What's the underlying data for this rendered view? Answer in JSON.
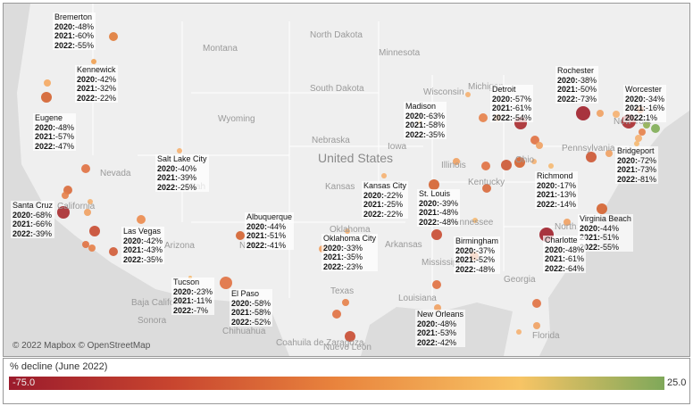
{
  "map": {
    "copyright": "© 2022 Mapbox © OpenStreetMap",
    "places": [
      "Montana",
      "North Dakota",
      "South Dakota",
      "Minnesota",
      "Wisconsin",
      "Wyoming",
      "Nebraska",
      "United States",
      "Iowa",
      "Illinois",
      "Ohio",
      "Pennsylvania",
      "New York",
      "Kansas",
      "Nevada",
      "California",
      "Utah",
      "Kentucky",
      "Arizona",
      "New",
      "Oklahoma",
      "Arkansas",
      "Tennessee",
      "North",
      "Mississippi",
      "Texas",
      "Louisiana",
      "Georgia",
      "Florida",
      "Baja California",
      "Sonora",
      "Chihuahua",
      "Coahuila de Zaragoza",
      "Nuevo León",
      "Michigan"
    ],
    "cities": [
      {
        "name": "Bremerton",
        "rows": [
          {
            "year": "2020:",
            "value": "-48%"
          },
          {
            "year": "2021:",
            "value": "-60%"
          },
          {
            "year": "2022:",
            "value": "-55%"
          }
        ]
      },
      {
        "name": "Kennewick",
        "rows": [
          {
            "year": "2020:",
            "value": "-42%"
          },
          {
            "year": "2021:",
            "value": "-32%"
          },
          {
            "year": "2022:",
            "value": "-22%"
          }
        ]
      },
      {
        "name": "Eugene",
        "rows": [
          {
            "year": "2020:",
            "value": "-48%"
          },
          {
            "year": "2021:",
            "value": "-57%"
          },
          {
            "year": "2022:",
            "value": "-47%"
          }
        ]
      },
      {
        "name": "Salt Lake City",
        "rows": [
          {
            "year": "2020:",
            "value": "-40%"
          },
          {
            "year": "2021:",
            "value": "-39%"
          },
          {
            "year": "2022:",
            "value": "-25%"
          }
        ]
      },
      {
        "name": "Santa Cruz",
        "rows": [
          {
            "year": "2020:",
            "value": "-68%"
          },
          {
            "year": "2021:",
            "value": "-66%"
          },
          {
            "year": "2022:",
            "value": "-39%"
          }
        ]
      },
      {
        "name": "Las Vegas",
        "rows": [
          {
            "year": "2020:",
            "value": "-42%"
          },
          {
            "year": "2021:",
            "value": "-43%"
          },
          {
            "year": "2022:",
            "value": "-35%"
          }
        ]
      },
      {
        "name": "Albuquerque",
        "rows": [
          {
            "year": "2020:",
            "value": "-44%"
          },
          {
            "year": "2021:",
            "value": "-51%"
          },
          {
            "year": "2022:",
            "value": "-41%"
          }
        ]
      },
      {
        "name": "Tucson",
        "rows": [
          {
            "year": "2020:",
            "value": "-23%"
          },
          {
            "year": "2021:",
            "value": "-11%"
          },
          {
            "year": "2022:",
            "value": "-7%"
          }
        ]
      },
      {
        "name": "El Paso",
        "rows": [
          {
            "year": "2020:",
            "value": "-58%"
          },
          {
            "year": "2021:",
            "value": "-58%"
          },
          {
            "year": "2022:",
            "value": "-52%"
          }
        ]
      },
      {
        "name": "Oklahoma City",
        "rows": [
          {
            "year": "2020:",
            "value": "-33%"
          },
          {
            "year": "2021:",
            "value": "-35%"
          },
          {
            "year": "2022:",
            "value": "-23%"
          }
        ]
      },
      {
        "name": "Kansas City",
        "rows": [
          {
            "year": "2020:",
            "value": "-22%"
          },
          {
            "year": "2021:",
            "value": "-25%"
          },
          {
            "year": "2022:",
            "value": "-22%"
          }
        ]
      },
      {
        "name": "St. Louis",
        "rows": [
          {
            "year": "2020:",
            "value": "-39%"
          },
          {
            "year": "2021:",
            "value": "-48%"
          },
          {
            "year": "2022:",
            "value": "-48%"
          }
        ]
      },
      {
        "name": "Madison",
        "rows": [
          {
            "year": "2020:",
            "value": "-63%"
          },
          {
            "year": "2021:",
            "value": "-58%"
          },
          {
            "year": "2022:",
            "value": "-35%"
          }
        ]
      },
      {
        "name": "Detroit",
        "rows": [
          {
            "year": "2020:",
            "value": "-57%"
          },
          {
            "year": "2021:",
            "value": "-61%"
          },
          {
            "year": "2022:",
            "value": "-54%"
          }
        ]
      },
      {
        "name": "Rochester",
        "rows": [
          {
            "year": "2020:",
            "value": "-38%"
          },
          {
            "year": "2021:",
            "value": "-50%"
          },
          {
            "year": "2022:",
            "value": "-73%"
          }
        ]
      },
      {
        "name": "Worcester",
        "rows": [
          {
            "year": "2020:",
            "value": "-34%"
          },
          {
            "year": "2021:",
            "value": "-16%"
          },
          {
            "year": "2022:",
            "value": "1%"
          }
        ]
      },
      {
        "name": "Bridgeport",
        "rows": [
          {
            "year": "2020:",
            "value": "-72%"
          },
          {
            "year": "2021:",
            "value": "-73%"
          },
          {
            "year": "2022:",
            "value": "-81%"
          }
        ]
      },
      {
        "name": "Richmond",
        "rows": [
          {
            "year": "2020:",
            "value": "-17%"
          },
          {
            "year": "2021:",
            "value": "-13%"
          },
          {
            "year": "2022:",
            "value": "-14%"
          }
        ]
      },
      {
        "name": "Virginia Beach",
        "rows": [
          {
            "year": "2020:",
            "value": "-44%"
          },
          {
            "year": "2021:",
            "value": "-51%"
          },
          {
            "year": "2022:",
            "value": "-55%"
          }
        ]
      },
      {
        "name": "Charlotte",
        "rows": [
          {
            "year": "2020:",
            "value": "-48%"
          },
          {
            "year": "2021:",
            "value": "-61%"
          },
          {
            "year": "2022:",
            "value": "-64%"
          }
        ]
      },
      {
        "name": "Birmingham",
        "rows": [
          {
            "year": "2020:",
            "value": "-37%"
          },
          {
            "year": "2021:",
            "value": "-52%"
          },
          {
            "year": "2022:",
            "value": "-48%"
          }
        ]
      },
      {
        "name": "New Orleans",
        "rows": [
          {
            "year": "2020:",
            "value": "-48%"
          },
          {
            "year": "2021:",
            "value": "-53%"
          },
          {
            "year": "2022:",
            "value": "-42%"
          }
        ]
      }
    ]
  },
  "legend": {
    "title": "% decline (June 2022)",
    "min": "-75.0",
    "max": "25.0"
  }
}
